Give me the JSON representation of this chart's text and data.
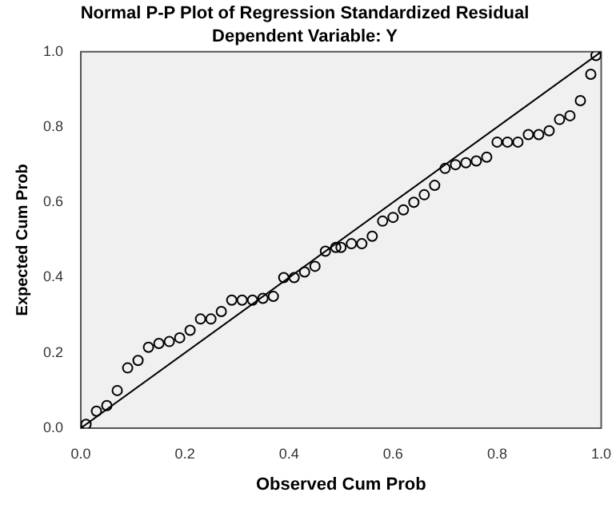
{
  "chart_data": {
    "type": "scatter",
    "title": "Normal P-P Plot of Regression Standardized Residual",
    "subtitle": "Dependent Variable: Y",
    "xlabel": "Observed Cum Prob",
    "ylabel": "Expected Cum Prob",
    "xlim": [
      0,
      1
    ],
    "ylim": [
      0,
      1
    ],
    "xticks": [
      {
        "value": 0,
        "label": "0.0"
      },
      {
        "value": 0.2,
        "label": "0.2"
      },
      {
        "value": 0.4,
        "label": "0.4"
      },
      {
        "value": 0.6,
        "label": "0.6"
      },
      {
        "value": 0.8,
        "label": "0.8"
      },
      {
        "value": 1,
        "label": "1.0"
      }
    ],
    "yticks": [
      {
        "value": 0,
        "label": "0.0"
      },
      {
        "value": 0.2,
        "label": "0.2"
      },
      {
        "value": 0.4,
        "label": "0.4"
      },
      {
        "value": 0.6,
        "label": "0.6"
      },
      {
        "value": 0.8,
        "label": "0.8"
      },
      {
        "value": 1,
        "label": "1.0"
      }
    ],
    "grid": false,
    "legend": false,
    "marker": "circle",
    "series": [
      {
        "color": "#000000",
        "x": [
          0.01,
          0.03,
          0.05,
          0.07,
          0.09,
          0.11,
          0.13,
          0.15,
          0.17,
          0.19,
          0.21,
          0.23,
          0.25,
          0.27,
          0.29,
          0.31,
          0.33,
          0.35,
          0.37,
          0.39,
          0.41,
          0.43,
          0.45,
          0.47,
          0.49,
          0.5,
          0.52,
          0.54,
          0.56,
          0.58,
          0.6,
          0.62,
          0.64,
          0.66,
          0.68,
          0.7,
          0.72,
          0.74,
          0.76,
          0.78,
          0.8,
          0.82,
          0.84,
          0.86,
          0.88,
          0.9,
          0.92,
          0.94,
          0.96,
          0.98,
          0.99
        ],
        "values": [
          0.01,
          0.045,
          0.06,
          0.1,
          0.16,
          0.18,
          0.215,
          0.225,
          0.23,
          0.24,
          0.26,
          0.29,
          0.29,
          0.31,
          0.34,
          0.34,
          0.34,
          0.345,
          0.35,
          0.4,
          0.4,
          0.415,
          0.43,
          0.47,
          0.48,
          0.48,
          0.49,
          0.49,
          0.51,
          0.55,
          0.56,
          0.58,
          0.6,
          0.62,
          0.645,
          0.69,
          0.7,
          0.705,
          0.71,
          0.72,
          0.76,
          0.76,
          0.76,
          0.78,
          0.78,
          0.79,
          0.82,
          0.83,
          0.87,
          0.94,
          0.99
        ]
      },
      {
        "type": "line",
        "color": "#000000",
        "marker": "none",
        "x": [
          0,
          1
        ],
        "values": [
          0,
          1
        ]
      }
    ]
  }
}
